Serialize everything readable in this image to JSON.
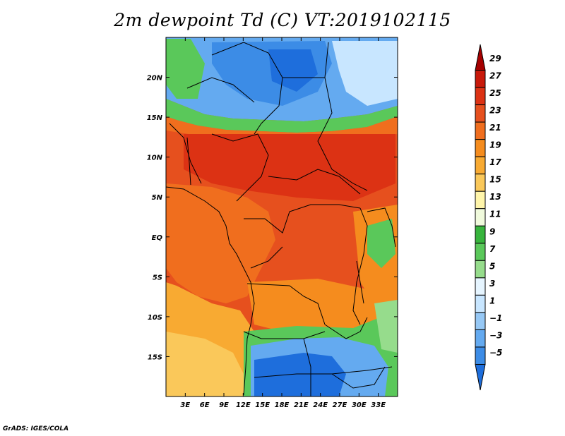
{
  "title": "2m dewpoint Td (C) VT:2019102115",
  "credit": "GrADS: IGES/COLA",
  "map": {
    "lon_range": [
      0,
      36
    ],
    "lat_range": [
      -20,
      25
    ],
    "lat_ticks": [
      {
        "value": 20,
        "label": "20N"
      },
      {
        "value": 15,
        "label": "15N"
      },
      {
        "value": 10,
        "label": "10N"
      },
      {
        "value": 5,
        "label": "5N"
      },
      {
        "value": 0,
        "label": "EQ"
      },
      {
        "value": -5,
        "label": "5S"
      },
      {
        "value": -10,
        "label": "10S"
      },
      {
        "value": -15,
        "label": "15S"
      }
    ],
    "lon_ticks": [
      {
        "value": 3,
        "label": "3E"
      },
      {
        "value": 6,
        "label": "6E"
      },
      {
        "value": 9,
        "label": "9E"
      },
      {
        "value": 12,
        "label": "12E"
      },
      {
        "value": 15,
        "label": "15E"
      },
      {
        "value": 18,
        "label": "18E"
      },
      {
        "value": 21,
        "label": "21E"
      },
      {
        "value": 24,
        "label": "24E"
      },
      {
        "value": 27,
        "label": "27E"
      },
      {
        "value": 30,
        "label": "30E"
      },
      {
        "value": 33,
        "label": "33E"
      }
    ]
  },
  "colorbar": {
    "levels": [
      "29",
      "27",
      "25",
      "23",
      "21",
      "19",
      "17",
      "15",
      "13",
      "11",
      "9",
      "7",
      "5",
      "3",
      "1",
      "−1",
      "−3",
      "−5"
    ],
    "colors": [
      "#a50000",
      "#c8190a",
      "#dc3214",
      "#e6501e",
      "#f06e1e",
      "#f58c1e",
      "#f8aa32",
      "#fac85a",
      "#fff5aa",
      "#f0fadc",
      "#37b43c",
      "#5ac85a",
      "#96dc8c",
      "#e6f5ff",
      "#c8e6ff",
      "#96c8f5",
      "#64aaf0",
      "#3c8ce6",
      "#1e6edc"
    ]
  }
}
